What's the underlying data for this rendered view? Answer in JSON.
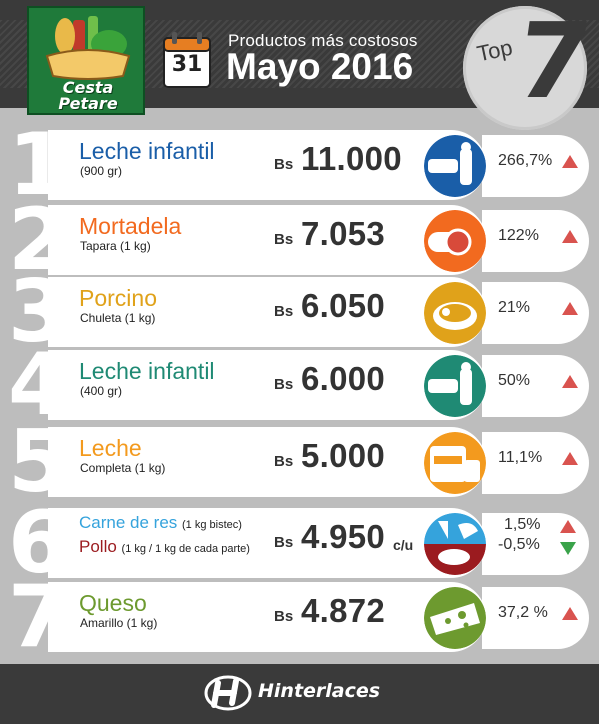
{
  "header": {
    "logo_line1": "Cesta",
    "logo_line2": "Petare",
    "calendar_day": "31",
    "subtitle": "Productos más costosos",
    "title": "Mayo 2016",
    "badge_label": "Top",
    "badge_number": "7"
  },
  "currency": "Bs",
  "rows": [
    {
      "rank": "1",
      "name": "Leche infantil",
      "desc": "(900 gr)",
      "price": "11.000",
      "change": "266,7%",
      "trend": "up",
      "color": "#1a5ea8"
    },
    {
      "rank": "2",
      "name": "Mortadela",
      "desc": "Tapara (1 kg)",
      "price": "7.053",
      "change": "122%",
      "trend": "up",
      "color": "#f26a1f"
    },
    {
      "rank": "3",
      "name": "Porcino",
      "desc": "Chuleta (1 kg)",
      "price": "6.050",
      "change": "21%",
      "trend": "up",
      "color": "#e0a21a"
    },
    {
      "rank": "4",
      "name": "Leche infantil",
      "desc": "(400 gr)",
      "price": "6.000",
      "change": "50%",
      "trend": "up",
      "color": "#1f8a74"
    },
    {
      "rank": "5",
      "name": "Leche",
      "desc": "Completa (1 kg)",
      "price": "5.000",
      "change": "11,1%",
      "trend": "up",
      "color": "#f39a1e"
    },
    {
      "rank": "6",
      "name": "Carne de res",
      "name_note": "(1 kg bistec)",
      "name2": "Pollo",
      "name2_note": "(1 kg / 1 kg de cada parte)",
      "price": "4.950",
      "unit": "c/u",
      "change": "1,5%",
      "change2": "-0,5%",
      "trend": "up",
      "trend2": "down",
      "color": "#35a3dc",
      "color2": "#9b1b1f"
    },
    {
      "rank": "7",
      "name": "Queso",
      "desc": "Amarillo (1 kg)",
      "price": "4.872",
      "change": "37,2 %",
      "trend": "up",
      "color": "#6d9a2f"
    }
  ],
  "footer": {
    "brand": "Hinterlaces"
  }
}
